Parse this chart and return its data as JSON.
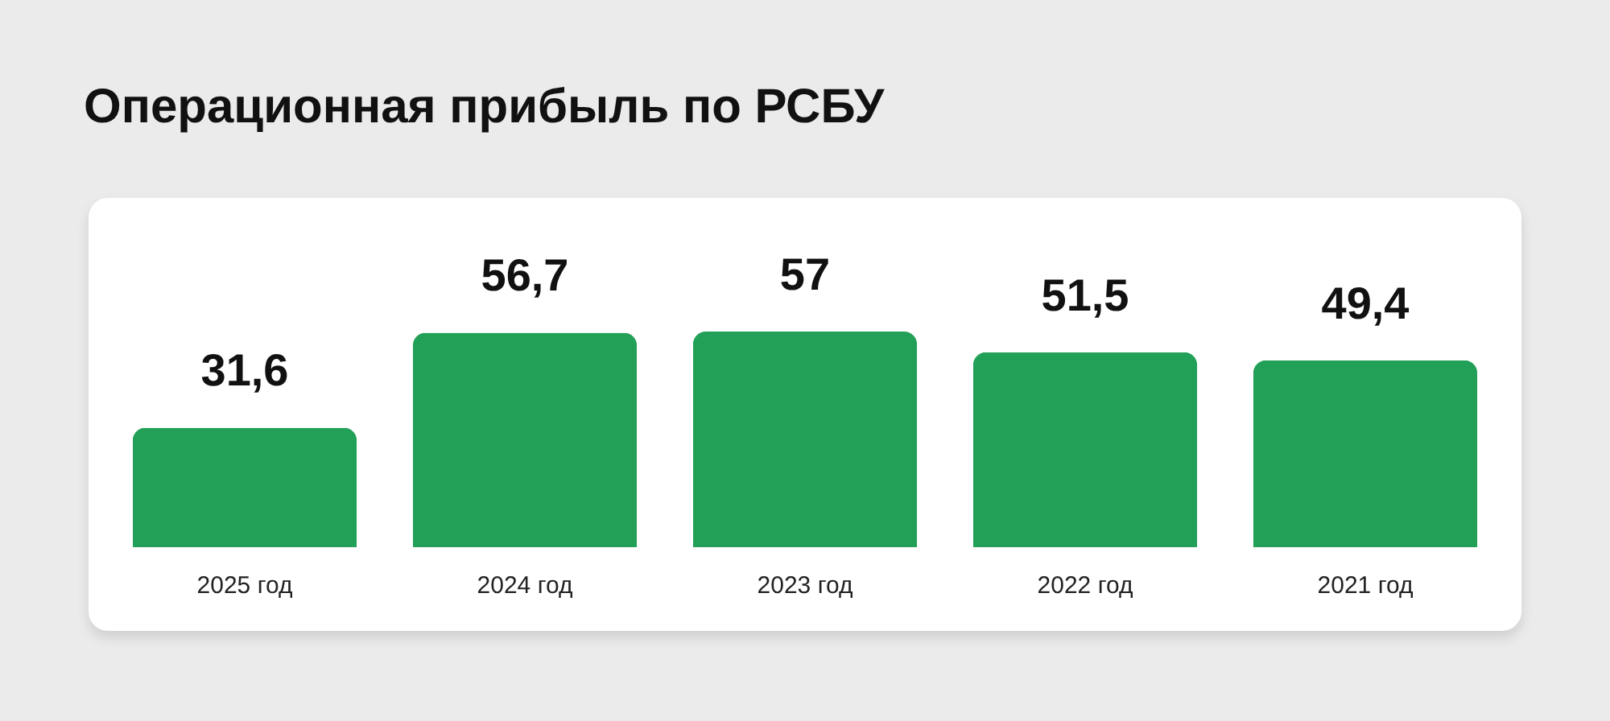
{
  "chart_data": {
    "type": "bar",
    "title": "Операционная прибыль по РСБУ",
    "categories": [
      "2025 год",
      "2024 год",
      "2023 год",
      "2022 год",
      "2021 год"
    ],
    "values": [
      31.6,
      56.7,
      57,
      51.5,
      49.4
    ],
    "color": "#22a058",
    "value_labels": [
      "31,6",
      "56,7",
      "57",
      "51,5",
      "49,4"
    ]
  }
}
